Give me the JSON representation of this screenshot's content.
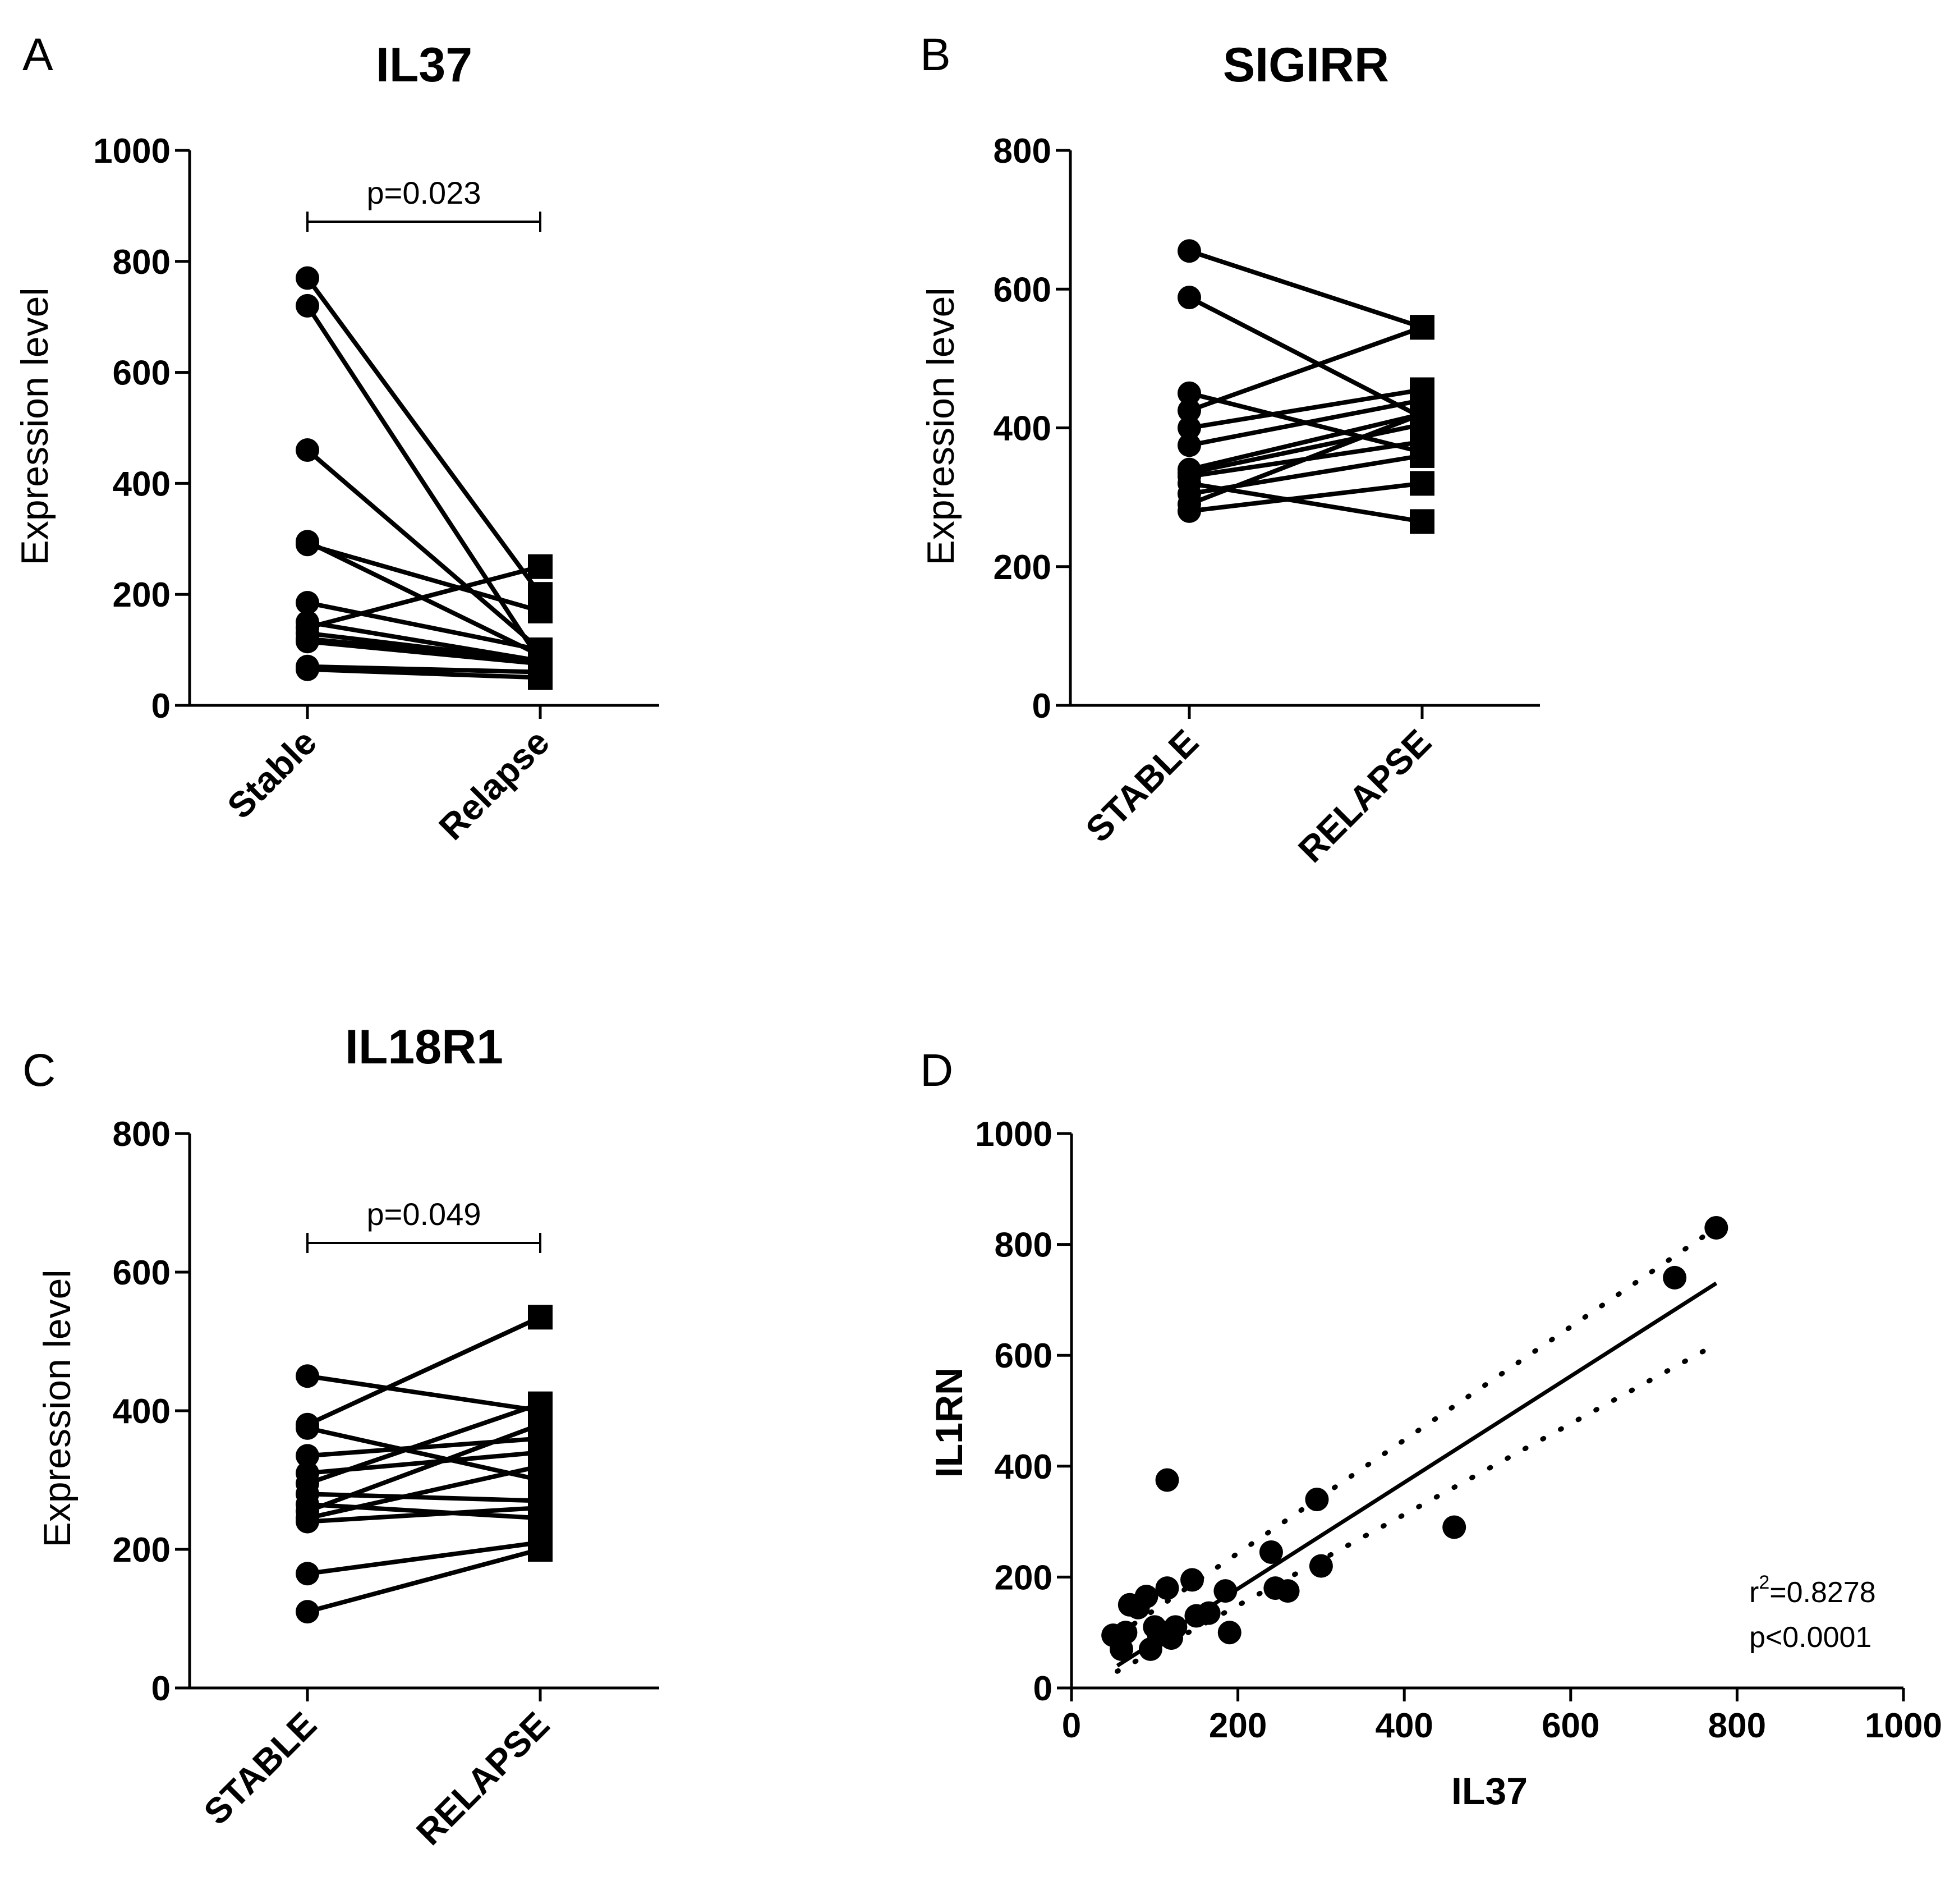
{
  "chart_data": [
    {
      "panel": "A",
      "type": "line",
      "title": "IL37",
      "ylabel": "Expression level",
      "categories": [
        "Stable",
        "Relapse"
      ],
      "ylim": [
        0,
        1000
      ],
      "yticks": [
        0,
        200,
        400,
        600,
        800,
        1000
      ],
      "pvalue_label": "p=0.023",
      "pairs": [
        [
          770,
          200
        ],
        [
          720,
          80
        ],
        [
          460,
          100
        ],
        [
          295,
          90
        ],
        [
          290,
          170
        ],
        [
          185,
          100
        ],
        [
          150,
          80
        ],
        [
          140,
          250
        ],
        [
          130,
          80
        ],
        [
          120,
          80
        ],
        [
          115,
          75
        ],
        [
          70,
          60
        ],
        [
          65,
          50
        ]
      ]
    },
    {
      "panel": "B",
      "type": "line",
      "title": "SIGIRR",
      "ylabel": "Expression level",
      "categories": [
        "STABLE",
        "RELAPSE"
      ],
      "ylim": [
        0,
        800
      ],
      "yticks": [
        0,
        200,
        400,
        600,
        800
      ],
      "pvalue_label": "",
      "pairs": [
        [
          655,
          545
        ],
        [
          588,
          415
        ],
        [
          450,
          365
        ],
        [
          425,
          545
        ],
        [
          400,
          455
        ],
        [
          375,
          440
        ],
        [
          340,
          420
        ],
        [
          335,
          405
        ],
        [
          330,
          380
        ],
        [
          320,
          265
        ],
        [
          305,
          360
        ],
        [
          290,
          420
        ],
        [
          280,
          320
        ]
      ]
    },
    {
      "panel": "C",
      "type": "line",
      "title": "IL18R1",
      "ylabel": "Expression level",
      "categories": [
        "STABLE",
        "RELAPSE"
      ],
      "ylim": [
        0,
        800
      ],
      "yticks": [
        0,
        200,
        400,
        600,
        800
      ],
      "pvalue_label": "p=0.049",
      "pairs": [
        [
          450,
          400
        ],
        [
          380,
          535
        ],
        [
          375,
          300
        ],
        [
          335,
          360
        ],
        [
          310,
          340
        ],
        [
          295,
          410
        ],
        [
          280,
          270
        ],
        [
          265,
          245
        ],
        [
          255,
          380
        ],
        [
          245,
          320
        ],
        [
          240,
          260
        ],
        [
          165,
          210
        ],
        [
          110,
          200
        ]
      ]
    },
    {
      "panel": "D",
      "type": "scatter",
      "title": "",
      "xlabel": "IL37",
      "ylabel": "IL1RN",
      "xlim": [
        0,
        1000
      ],
      "ylim": [
        0,
        1000
      ],
      "xticks": [
        0,
        200,
        400,
        600,
        800,
        1000
      ],
      "yticks": [
        0,
        200,
        400,
        600,
        800,
        1000
      ],
      "points": [
        [
          50,
          95
        ],
        [
          60,
          70
        ],
        [
          65,
          100
        ],
        [
          70,
          150
        ],
        [
          80,
          145
        ],
        [
          90,
          165
        ],
        [
          95,
          70
        ],
        [
          100,
          110
        ],
        [
          105,
          95
        ],
        [
          110,
          100
        ],
        [
          115,
          375
        ],
        [
          115,
          180
        ],
        [
          120,
          90
        ],
        [
          125,
          110
        ],
        [
          145,
          195
        ],
        [
          150,
          130
        ],
        [
          165,
          135
        ],
        [
          185,
          175
        ],
        [
          190,
          100
        ],
        [
          240,
          245
        ],
        [
          245,
          180
        ],
        [
          260,
          175
        ],
        [
          295,
          340
        ],
        [
          300,
          220
        ],
        [
          460,
          290
        ],
        [
          725,
          740
        ],
        [
          775,
          830
        ]
      ],
      "fit": {
        "x0": 55,
        "y0": 40,
        "x1": 775,
        "y1": 730
      },
      "ci_upper": {
        "x0": 55,
        "y0": 95,
        "x1": 775,
        "y1": 830
      },
      "ci_lower": {
        "x0": 55,
        "y0": 30,
        "x1": 775,
        "y1": 620
      },
      "r2_prefix": "r",
      "r2_sup": "2",
      "r2_value": "=0.8278",
      "p_label": "p<0.0001"
    }
  ]
}
